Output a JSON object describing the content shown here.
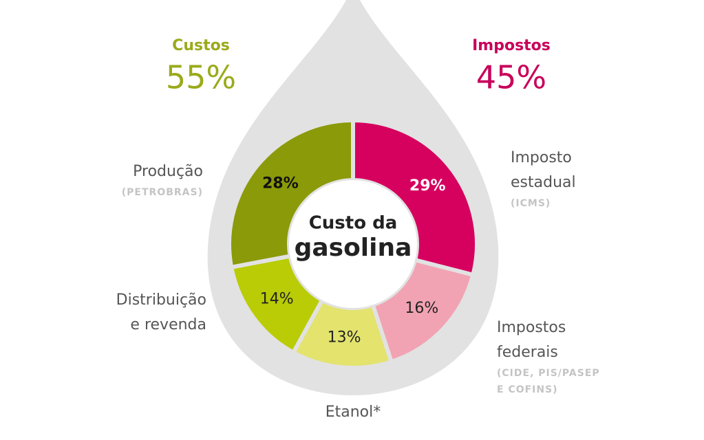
{
  "chart_data": {
    "type": "donut",
    "center_title": [
      "Custo da",
      "gasolina"
    ],
    "groups": [
      {
        "name": "Custos",
        "value": 55,
        "value_label": "55%",
        "color": "#9aaa1a"
      },
      {
        "name": "Impostos",
        "value": 45,
        "value_label": "45%",
        "color": "#c8005a"
      }
    ],
    "segments": [
      {
        "label": [
          "Imposto",
          "estadual"
        ],
        "note": [
          "(ICMS)"
        ],
        "value": 29,
        "value_label": "29%",
        "color": "#d6005f",
        "label_color": "#ffffff",
        "bold": true
      },
      {
        "label": [
          "Impostos",
          "federais"
        ],
        "note": [
          "(CIDE, PIS/PASEP",
          "E COFINS)"
        ],
        "value": 16,
        "value_label": "16%",
        "color": "#f2a3b3",
        "label_color": "#222222",
        "bold": false
      },
      {
        "label": [
          "Etanol*"
        ],
        "note": [],
        "value": 13,
        "value_label": "13%",
        "color": "#e3e36e",
        "label_color": "#222222",
        "bold": false
      },
      {
        "label": [
          "Distribuição",
          "e revenda"
        ],
        "note": [],
        "value": 14,
        "value_label": "14%",
        "color": "#b9cc05",
        "label_color": "#222222",
        "bold": false
      },
      {
        "label": [
          "Produção"
        ],
        "note": [
          "(PETROBRAS)"
        ],
        "value": 28,
        "value_label": "28%",
        "color": "#8b9a08",
        "label_color": "#111111",
        "bold": true
      }
    ]
  }
}
